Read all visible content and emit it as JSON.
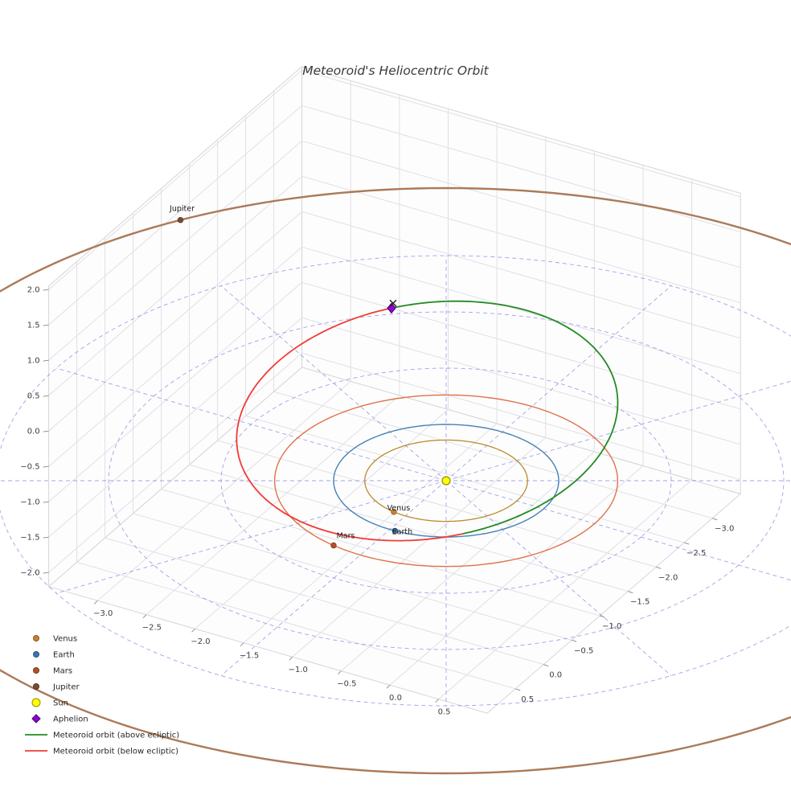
{
  "title": "Meteoroid's Heliocentric Orbit",
  "title_color": "#3a3a3a",
  "plot_labels_color": "#1a1a1a",
  "legend_text_color": "#262626",
  "chart_data": {
    "type": "line",
    "subtype": "3d-orbit-plot",
    "view": {
      "elev_deg": 30,
      "azim_deg": -60,
      "y_axis_inverted": true
    },
    "axes": {
      "xlim": [
        -3.5,
        1.0
      ],
      "ylim": [
        -3.5,
        1.0
      ],
      "zlim": [
        -2.2,
        2.05
      ],
      "x_ticks": [
        -3.0,
        -2.5,
        -2.0,
        -1.5,
        -1.0,
        -0.5,
        0.0,
        0.5
      ],
      "y_ticks": [
        -3.0,
        -2.5,
        -2.0,
        -1.5,
        -1.0,
        -0.5,
        0.0,
        0.5
      ],
      "z_ticks": [
        2.0,
        1.5,
        1.0,
        0.5,
        0.0,
        -0.5,
        -1.0,
        -1.5,
        -2.0
      ],
      "grid": true,
      "pane_color": "#fdfdfe",
      "grid_color": "#e0e0e4",
      "edge_color": "#d6d6da",
      "tick_color": "#777777",
      "tick_label_color": "#3d3d3d"
    },
    "ecliptic_polar_grid": {
      "circle_radii_au": [
        1,
        2,
        3,
        4
      ],
      "radial_step_deg": 30,
      "max_radius_au": 4,
      "color": "#4747cf",
      "opacity": 0.5,
      "dash": "5 4"
    },
    "sun": {
      "label": "Sun",
      "color": "#ffff00",
      "edge_color": "#8f8f00"
    },
    "planets": [
      {
        "name": "Venus",
        "orbit_radius_au": 0.723,
        "position_angle_deg": 100,
        "orbit_color": "#bd8a2e",
        "marker_color": "#c87f33",
        "marker_edge": "#8a5a1e",
        "line_width": 1.3,
        "label_offset": [
          6,
          -2
        ]
      },
      {
        "name": "Earth",
        "orbit_radius_au": 1.0,
        "position_angle_deg": 87,
        "orbit_color": "#4682b4",
        "marker_color": "#3b76ad",
        "marker_edge": "#28557e",
        "line_width": 1.4,
        "label_offset": [
          9,
          4
        ]
      },
      {
        "name": "Mars",
        "orbit_radius_au": 1.524,
        "position_angle_deg": 101,
        "orbit_color": "#e0714a",
        "marker_color": "#b5502a",
        "marker_edge": "#7e3a1e",
        "line_width": 1.4,
        "label_offset": [
          15,
          -9
        ]
      },
      {
        "name": "Jupiter",
        "orbit_radius_au": 5.2,
        "position_angle_deg": 213,
        "orbit_color": "#ab7a58",
        "marker_color": "#7a4b32",
        "marker_edge": "#553321",
        "line_width": 2.4,
        "label_offset": [
          2,
          -11
        ]
      }
    ],
    "meteoroid_orbit": {
      "semi_major_axis_au": 2.03,
      "eccentricity": 0.53,
      "inclination_deg": 12,
      "perihelion_longitude_deg": 51,
      "aphelion_distance_au": 3.1,
      "perihelion_distance_au": 0.95,
      "above_color": "#228b22",
      "below_color": "#f03b33",
      "line_width": 1.8
    },
    "aphelion": {
      "label": "Aphelion",
      "color": "#9400d3",
      "edge_color": "#3d006b",
      "x_marker_color": "#1d1d1d"
    }
  },
  "legend": {
    "items": [
      {
        "label": "Venus",
        "marker": "dot",
        "color": "#c87f33",
        "edge": "#8a5a1e"
      },
      {
        "label": "Earth",
        "marker": "dot",
        "color": "#3b76ad",
        "edge": "#28557e"
      },
      {
        "label": "Mars",
        "marker": "dot",
        "color": "#b5502a",
        "edge": "#7e3a1e"
      },
      {
        "label": "Jupiter",
        "marker": "dot",
        "color": "#7a4b32",
        "edge": "#553321"
      },
      {
        "label": "Sun",
        "marker": "dot-large",
        "color": "#ffff00",
        "edge": "#8f8f00"
      },
      {
        "label": "Aphelion",
        "marker": "diamond",
        "color": "#9400d3",
        "edge": "#3d006b"
      },
      {
        "label": "Meteoroid orbit (above ecliptic)",
        "marker": "line",
        "color": "#228b22"
      },
      {
        "label": "Meteoroid orbit (below ecliptic)",
        "marker": "line",
        "color": "#f03b33"
      }
    ]
  }
}
